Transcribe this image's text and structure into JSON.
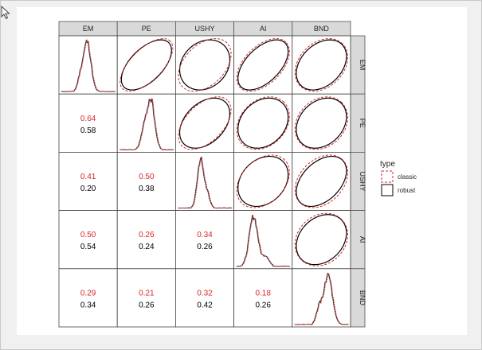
{
  "chart_data": {
    "type": "scatterplot-matrix",
    "variables": [
      "EM",
      "PE",
      "USHY",
      "AI",
      "BND"
    ],
    "series": [
      {
        "name": "classic",
        "color": "#d62728",
        "line": "dashed"
      },
      {
        "name": "robust",
        "color": "#000000",
        "line": "solid"
      }
    ],
    "correlations": [
      {
        "row": "PE",
        "col": "EM",
        "classic": "0.64",
        "robust": "0.58"
      },
      {
        "row": "USHY",
        "col": "EM",
        "classic": "0.41",
        "robust": "0.20"
      },
      {
        "row": "USHY",
        "col": "PE",
        "classic": "0.50",
        "robust": "0.38"
      },
      {
        "row": "AI",
        "col": "EM",
        "classic": "0.50",
        "robust": "0.54"
      },
      {
        "row": "AI",
        "col": "PE",
        "classic": "0.26",
        "robust": "0.24"
      },
      {
        "row": "AI",
        "col": "USHY",
        "classic": "0.34",
        "robust": "0.26"
      },
      {
        "row": "BND",
        "col": "EM",
        "classic": "0.29",
        "robust": "0.34"
      },
      {
        "row": "BND",
        "col": "PE",
        "classic": "0.21",
        "robust": "0.26"
      },
      {
        "row": "BND",
        "col": "USHY",
        "classic": "0.32",
        "robust": "0.42"
      },
      {
        "row": "BND",
        "col": "AI",
        "classic": "0.18",
        "robust": "0.26"
      }
    ],
    "legend": {
      "title": "type",
      "entries": [
        "classic",
        "robust"
      ],
      "position": "right"
    },
    "upper_panels": "ellipses",
    "diagonal_panels": "densities",
    "lower_panels": "correlation text"
  },
  "colors": {
    "classic": "#d62728",
    "robust": "#000000",
    "strip": "#d9d9d9",
    "background": "#f0f0f0"
  },
  "icons": {
    "cursor": "mouse-pointer-icon"
  }
}
